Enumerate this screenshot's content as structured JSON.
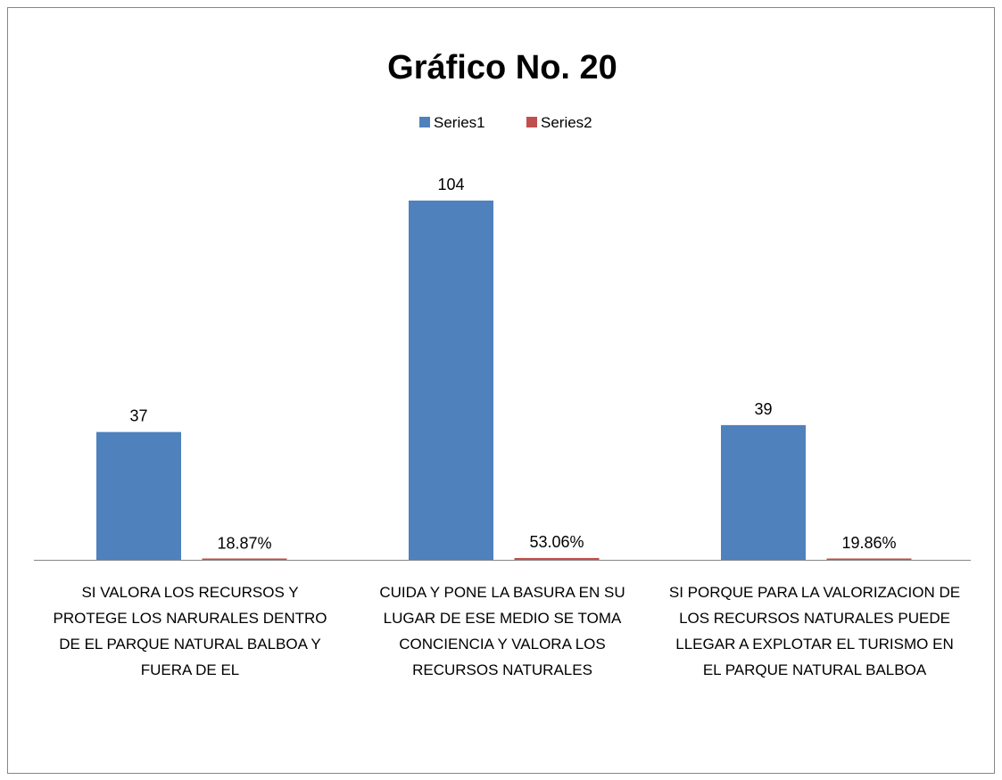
{
  "chart_data": {
    "type": "bar",
    "title": "Gráfico No. 20",
    "categories": [
      "SI VALORA LOS RECURSOS Y PROTEGE LOS NARURALES DENTRO DE EL PARQUE NATURAL BALBOA Y FUERA DE EL",
      "CUIDA Y PONE LA BASURA EN SU LUGAR DE ESE MEDIO SE TOMA CONCIENCIA Y VALORA LOS RECURSOS NATURALES",
      "SI PORQUE PARA LA VALORIZACION DE LOS RECURSOS NATURALES  PUEDE LLEGAR A EXPLOTAR EL TURISMO EN EL PARQUE NATURAL BALBOA"
    ],
    "series": [
      {
        "name": "Series1",
        "color": "#4f81bd",
        "values": [
          37,
          104,
          39
        ]
      },
      {
        "name": "Series2",
        "color": "#c0504d",
        "values": [
          0.1887,
          0.5306,
          0.1986
        ],
        "value_labels": [
          "18.87%",
          "53.06%",
          "19.86%"
        ]
      }
    ],
    "legend": "top"
  }
}
